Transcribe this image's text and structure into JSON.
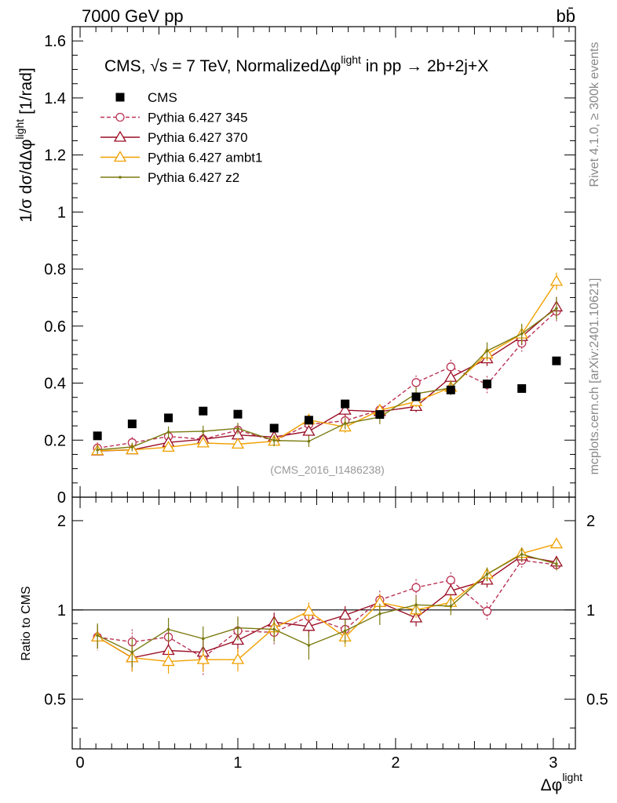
{
  "header": {
    "left": "7000 GeV pp",
    "right": "bb̄"
  },
  "side_labels": {
    "rivet": "Rivet 4.1.0, ≥ 300k events",
    "mcplots": "mcplots.cern.ch [arXiv:2401.10621]"
  },
  "colors": {
    "data": "#000000",
    "p345": "#bb3355",
    "p370": "#9b0f26",
    "ambt1": "#f0a000",
    "z2": "#7a7a10"
  },
  "chart_data": [
    {
      "panel": "main",
      "type": "line",
      "title_parts": {
        "pre": "CMS, ",
        "sqrt": "√s",
        "post": " = 7 TeV, Normalized",
        "obs": "Δφ",
        "obs_sup": "light",
        "tail": " in pp →  2b+2j+X"
      },
      "xlabel": "Δφ",
      "xlabel_sup": "light",
      "ylabel": "1/σ dσ/dΔφ",
      "ylabel_sup": "light",
      "ylabel_unit": "[1/rad]",
      "xlim": [
        -0.05,
        3.14
      ],
      "ylim": [
        0,
        1.65
      ],
      "yticks": [
        0,
        0.2,
        0.4,
        0.6,
        0.8,
        1,
        1.2,
        1.4,
        1.6
      ],
      "ytick_labels": [
        "0",
        "0.2",
        "0.4",
        "0.6",
        "0.8",
        "1",
        "1.2",
        "1.4",
        "1.6"
      ],
      "xticks": [
        0,
        1,
        2,
        3
      ],
      "xtick_labels": [
        "0",
        "1",
        "2",
        "3"
      ],
      "watermark": "(CMS_2016_I1486238)",
      "legend_position": "top-left",
      "x": [
        0.11,
        0.33,
        0.56,
        0.78,
        1.0,
        1.23,
        1.45,
        1.68,
        1.9,
        2.13,
        2.35,
        2.58,
        2.8,
        3.02
      ],
      "series": [
        {
          "name": "CMS",
          "key": "data",
          "style": "square",
          "values": [
            0.215,
            0.257,
            0.278,
            0.302,
            0.291,
            0.242,
            0.27,
            0.327,
            0.29,
            0.352,
            0.376,
            0.397,
            0.381,
            0.478
          ]
        },
        {
          "name": "Pythia 6.427 345",
          "key": "p345",
          "style": "circle-dashed",
          "values": [
            0.172,
            0.191,
            0.213,
            0.203,
            0.235,
            0.198,
            0.255,
            0.268,
            0.306,
            0.402,
            0.457,
            0.395,
            0.54,
            0.652
          ],
          "errors": [
            0.02,
            0.02,
            0.02,
            0.02,
            0.02,
            0.02,
            0.02,
            0.02,
            0.02,
            0.025,
            0.025,
            0.03,
            0.03,
            0.035
          ]
        },
        {
          "name": "Pythia 6.427 370",
          "key": "p370",
          "style": "triangle",
          "values": [
            0.162,
            0.166,
            0.192,
            0.203,
            0.218,
            0.211,
            0.231,
            0.305,
            0.3,
            0.318,
            0.42,
            0.485,
            0.563,
            0.667
          ],
          "errors": [
            0.015,
            0.015,
            0.015,
            0.015,
            0.015,
            0.015,
            0.02,
            0.02,
            0.02,
            0.02,
            0.025,
            0.025,
            0.03,
            0.035
          ]
        },
        {
          "name": "Pythia 6.427 ambt1",
          "key": "ambt1",
          "style": "triangle",
          "values": [
            0.163,
            0.166,
            0.175,
            0.19,
            0.186,
            0.196,
            0.271,
            0.246,
            0.305,
            0.335,
            0.385,
            0.502,
            0.572,
            0.757
          ],
          "errors": [
            0.015,
            0.015,
            0.015,
            0.015,
            0.015,
            0.015,
            0.02,
            0.02,
            0.02,
            0.02,
            0.025,
            0.025,
            0.03,
            0.03
          ]
        },
        {
          "name": "Pythia 6.427 z2",
          "key": "z2",
          "style": "dot",
          "values": [
            0.166,
            0.176,
            0.228,
            0.231,
            0.241,
            0.199,
            0.196,
            0.258,
            0.281,
            0.363,
            0.383,
            0.513,
            0.573,
            0.662
          ],
          "errors": [
            0.015,
            0.015,
            0.02,
            0.02,
            0.02,
            0.02,
            0.02,
            0.02,
            0.025,
            0.025,
            0.025,
            0.03,
            0.035,
            0.04
          ]
        }
      ]
    },
    {
      "panel": "ratio",
      "type": "line",
      "ylabel": "Ratio to CMS",
      "ylim": [
        0.34,
        2.4
      ],
      "yscale": "log",
      "reference": 1,
      "yticks": [
        0.5,
        1,
        2
      ],
      "ytick_labels": [
        "0.5",
        "1",
        "2"
      ],
      "x": [
        0.11,
        0.33,
        0.56,
        0.78,
        1.0,
        1.23,
        1.45,
        1.68,
        1.9,
        2.13,
        2.35,
        2.58,
        2.8,
        3.02
      ],
      "series": [
        {
          "name": "Pythia 6.427 345",
          "key": "p345",
          "style": "circle-dashed",
          "values": [
            0.81,
            0.78,
            0.81,
            0.69,
            0.85,
            0.84,
            0.95,
            0.86,
            1.08,
            1.19,
            1.26,
            0.99,
            1.47,
            1.42
          ],
          "errors": [
            0.08,
            0.08,
            0.08,
            0.09,
            0.08,
            0.08,
            0.08,
            0.08,
            0.08,
            0.08,
            0.08,
            0.07,
            0.08,
            0.07
          ]
        },
        {
          "name": "Pythia 6.427 370",
          "key": "p370",
          "style": "triangle",
          "values": [
            0.81,
            0.69,
            0.73,
            0.72,
            0.79,
            0.91,
            0.88,
            0.96,
            1.06,
            0.94,
            1.16,
            1.26,
            1.52,
            1.45
          ],
          "errors": [
            0.07,
            0.07,
            0.07,
            0.07,
            0.07,
            0.07,
            0.07,
            0.07,
            0.07,
            0.06,
            0.07,
            0.07,
            0.07,
            0.07
          ]
        },
        {
          "name": "Pythia 6.427 ambt1",
          "key": "ambt1",
          "style": "triangle",
          "values": [
            0.81,
            0.69,
            0.67,
            0.68,
            0.68,
            0.87,
            0.99,
            0.81,
            1.06,
            1.0,
            1.06,
            1.32,
            1.55,
            1.67
          ],
          "errors": [
            0.07,
            0.07,
            0.06,
            0.06,
            0.06,
            0.07,
            0.07,
            0.06,
            0.07,
            0.06,
            0.06,
            0.07,
            0.06,
            0.05
          ]
        },
        {
          "name": "Pythia 6.427 z2",
          "key": "z2",
          "style": "dot",
          "values": [
            0.82,
            0.72,
            0.86,
            0.8,
            0.87,
            0.86,
            0.76,
            0.85,
            0.97,
            1.04,
            1.03,
            1.32,
            1.54,
            1.43
          ],
          "errors": [
            0.08,
            0.08,
            0.08,
            0.08,
            0.08,
            0.08,
            0.08,
            0.08,
            0.08,
            0.07,
            0.07,
            0.07,
            0.08,
            0.07
          ]
        }
      ]
    }
  ]
}
